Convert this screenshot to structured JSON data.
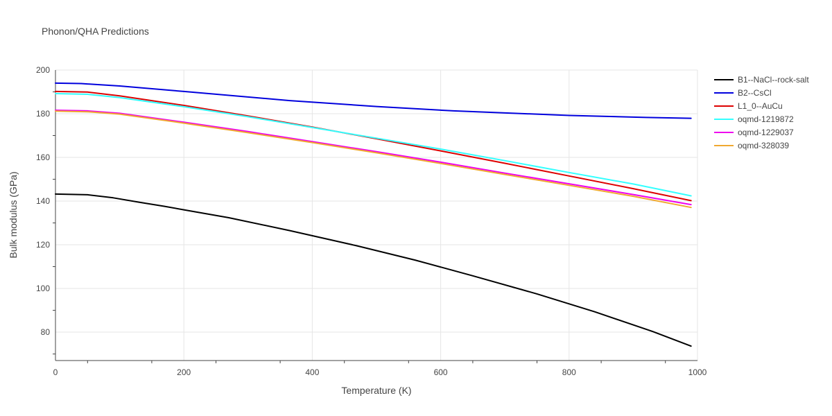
{
  "chart_data": {
    "type": "line",
    "title": "Phonon/QHA Predictions",
    "xlabel": "Temperature (K)",
    "ylabel": "Bulk modulus (GPa)",
    "xlim": [
      0,
      1000
    ],
    "ylim": [
      67,
      200
    ],
    "xticks": [
      0,
      200,
      400,
      600,
      800,
      1000
    ],
    "yticks": [
      80,
      100,
      120,
      140,
      160,
      180,
      200
    ],
    "grid": true,
    "legend_position": "top-right, outside plot",
    "series": [
      {
        "name": "B1--NaCl--rock-salt",
        "color": "#000000",
        "x": [
          0,
          50,
          90,
          130,
          170,
          200,
          270,
          365,
          470,
          560,
          650,
          750,
          840,
          930,
          990
        ],
        "y": [
          143.2,
          142.9,
          141.5,
          139.5,
          137.6,
          136.0,
          132.4,
          126.5,
          119.5,
          113.0,
          105.8,
          97.5,
          89.3,
          80.3,
          73.6
        ]
      },
      {
        "name": "B2--CsCl",
        "color": "#0000dd",
        "x": [
          0,
          40,
          100,
          200,
          365,
          500,
          620,
          800,
          920,
          990
        ],
        "y": [
          194.0,
          193.8,
          192.7,
          190.2,
          186.0,
          183.3,
          181.3,
          179.2,
          178.3,
          177.9
        ]
      },
      {
        "name": "L1_0--AuCu",
        "color": "#dd0000",
        "x": [
          0,
          50,
          100,
          200,
          300,
          400,
          500,
          600,
          700,
          800,
          900,
          990
        ],
        "y": [
          190.2,
          189.9,
          188.2,
          183.8,
          179.0,
          173.9,
          168.5,
          163.0,
          157.3,
          151.5,
          145.7,
          140.2
        ]
      },
      {
        "name": "oqmd-1219872",
        "color": "#33ffff",
        "x": [
          0,
          50,
          100,
          200,
          300,
          400,
          500,
          600,
          700,
          800,
          900,
          990
        ],
        "y": [
          189.2,
          188.9,
          187.4,
          183.2,
          178.6,
          173.7,
          168.8,
          163.8,
          158.5,
          153.1,
          147.8,
          142.4
        ]
      },
      {
        "name": "oqmd-1229037",
        "color": "#ee00ee",
        "x": [
          0,
          50,
          100,
          200,
          300,
          400,
          500,
          600,
          700,
          800,
          900,
          990
        ],
        "y": [
          181.6,
          181.3,
          180.2,
          176.1,
          171.8,
          167.2,
          162.6,
          157.8,
          152.8,
          147.9,
          143.0,
          138.4
        ]
      },
      {
        "name": "oqmd-328039",
        "color": "#f0a830",
        "x": [
          0,
          50,
          100,
          200,
          300,
          400,
          500,
          600,
          700,
          800,
          900,
          990
        ],
        "y": [
          181.2,
          180.9,
          179.8,
          175.7,
          171.3,
          166.8,
          162.1,
          157.2,
          152.2,
          147.2,
          142.2,
          137.1
        ]
      }
    ]
  }
}
